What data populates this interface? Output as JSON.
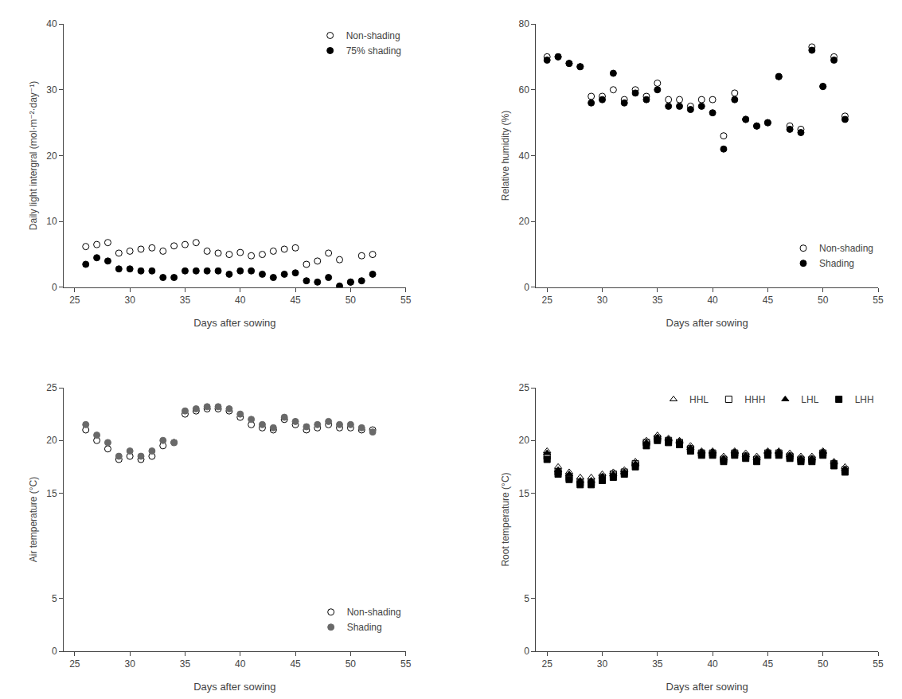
{
  "chart_data": [
    {
      "type": "scatter",
      "xlabel": "Days after sowing",
      "ylabel": "Daily light intergral (mol·m⁻²·day⁻¹)",
      "xlim": [
        24,
        55
      ],
      "xticks": [
        25,
        30,
        35,
        40,
        45,
        50,
        55
      ],
      "ylim": [
        0,
        40
      ],
      "yticks": [
        0,
        10,
        20,
        30,
        40
      ],
      "grid": false,
      "legend": "upper right",
      "series": [
        {
          "name": "Non-shading",
          "color": "black",
          "marker": "circle-open",
          "x": [
            26,
            27,
            28,
            29,
            30,
            31,
            32,
            33,
            34,
            35,
            36,
            37,
            38,
            39,
            40,
            41,
            42,
            43,
            44,
            45,
            46,
            47,
            48,
            49,
            50,
            51,
            52
          ],
          "values": [
            6.2,
            6.5,
            6.8,
            5.2,
            5.5,
            5.8,
            6.0,
            5.5,
            6.3,
            6.5,
            6.8,
            5.5,
            5.2,
            5.0,
            5.3,
            4.8,
            5.0,
            5.5,
            5.8,
            6.0,
            3.5,
            4.0,
            5.2,
            4.2,
            0.8,
            4.8,
            5.0
          ]
        },
        {
          "name": "75% shading",
          "color": "black",
          "marker": "circle",
          "x": [
            26,
            27,
            28,
            29,
            30,
            31,
            32,
            33,
            34,
            35,
            36,
            37,
            38,
            39,
            40,
            41,
            42,
            43,
            44,
            45,
            46,
            47,
            48,
            49,
            50,
            51,
            52
          ],
          "values": [
            3.5,
            4.5,
            4.0,
            2.8,
            2.8,
            2.5,
            2.5,
            1.5,
            1.5,
            2.5,
            2.5,
            2.5,
            2.5,
            2.0,
            2.5,
            2.5,
            2.0,
            1.5,
            2.0,
            2.2,
            1.0,
            0.8,
            1.5,
            0.2,
            0.8,
            1.0,
            2.0
          ]
        }
      ]
    },
    {
      "type": "scatter",
      "xlabel": "Days after sowing",
      "ylabel": "Relative humidity (%)",
      "xlim": [
        24,
        55
      ],
      "xticks": [
        25,
        30,
        35,
        40,
        45,
        50,
        55
      ],
      "ylim": [
        0,
        80
      ],
      "yticks": [
        0,
        20,
        40,
        60,
        80
      ],
      "grid": false,
      "legend": "lower right",
      "series": [
        {
          "name": "Non-shading",
          "color": "black",
          "marker": "circle-open",
          "x": [
            25,
            26,
            27,
            28,
            29,
            30,
            31,
            32,
            33,
            34,
            35,
            36,
            37,
            38,
            39,
            40,
            41,
            42,
            43,
            44,
            45,
            46,
            47,
            48,
            49,
            50,
            51,
            52
          ],
          "values": [
            70,
            70,
            68,
            67,
            58,
            58,
            60,
            57,
            60,
            58,
            62,
            57,
            57,
            55,
            57,
            57,
            46,
            59,
            51,
            49,
            50,
            64,
            49,
            48,
            73,
            61,
            70,
            52
          ]
        },
        {
          "name": "Shading",
          "color": "black",
          "marker": "circle",
          "x": [
            25,
            26,
            27,
            28,
            29,
            30,
            31,
            32,
            33,
            34,
            35,
            36,
            37,
            38,
            39,
            40,
            41,
            42,
            43,
            44,
            45,
            46,
            47,
            48,
            49,
            50,
            51,
            52
          ],
          "values": [
            69,
            70,
            68,
            67,
            56,
            57,
            65,
            56,
            59,
            57,
            60,
            55,
            55,
            54,
            55,
            53,
            42,
            57,
            51,
            49,
            50,
            64,
            48,
            47,
            72,
            61,
            69,
            51
          ]
        }
      ]
    },
    {
      "type": "scatter",
      "xlabel": "Days after sowing",
      "ylabel": "Air temperature (°C)",
      "xlim": [
        24,
        55
      ],
      "xticks": [
        25,
        30,
        35,
        40,
        45,
        50,
        55
      ],
      "ylim": [
        0,
        25
      ],
      "yticks": [
        0,
        5,
        15,
        20,
        25
      ],
      "grid": false,
      "legend": "lower right",
      "series": [
        {
          "name": "Non-shading",
          "color": "black",
          "marker": "circle-open",
          "x": [
            26,
            27,
            28,
            29,
            30,
            31,
            32,
            33,
            34,
            35,
            36,
            37,
            38,
            39,
            40,
            41,
            42,
            43,
            44,
            45,
            46,
            47,
            48,
            49,
            50,
            51,
            52
          ],
          "values": [
            21.0,
            20.0,
            19.2,
            18.2,
            18.5,
            18.2,
            18.5,
            19.5,
            19.8,
            22.5,
            22.8,
            23.0,
            23.0,
            22.8,
            22.2,
            21.5,
            21.2,
            21.0,
            22.0,
            21.5,
            21.0,
            21.2,
            21.5,
            21.2,
            21.2,
            21.0,
            21.0
          ]
        },
        {
          "name": "Shading",
          "color": "dimgray",
          "marker": "circle",
          "x": [
            26,
            27,
            28,
            29,
            30,
            31,
            32,
            33,
            34,
            35,
            36,
            37,
            38,
            39,
            40,
            41,
            42,
            43,
            44,
            45,
            46,
            47,
            48,
            49,
            50,
            51,
            52
          ],
          "values": [
            21.5,
            20.5,
            19.8,
            18.5,
            19.0,
            18.5,
            19.0,
            20.0,
            19.8,
            22.8,
            23.0,
            23.2,
            23.2,
            23.0,
            22.5,
            22.0,
            21.5,
            21.2,
            22.2,
            21.8,
            21.3,
            21.5,
            21.8,
            21.5,
            21.5,
            21.2,
            20.8
          ]
        }
      ]
    },
    {
      "type": "scatter",
      "xlabel": "Days after sowing",
      "ylabel": "Root temperature (°C)",
      "xlim": [
        24,
        55
      ],
      "xticks": [
        25,
        30,
        35,
        40,
        45,
        50,
        55
      ],
      "ylim": [
        0,
        25
      ],
      "yticks": [
        0,
        5,
        15,
        20,
        25
      ],
      "grid": false,
      "legend": "upper right",
      "series": [
        {
          "name": "HHL",
          "color": "black",
          "marker": "triangle-up-open",
          "x": [
            25,
            26,
            27,
            28,
            29,
            30,
            31,
            32,
            33,
            34,
            35,
            36,
            37,
            38,
            39,
            40,
            41,
            42,
            43,
            44,
            45,
            46,
            47,
            48,
            49,
            50,
            51,
            52
          ],
          "values": [
            19.0,
            17.5,
            17.0,
            16.5,
            16.5,
            16.8,
            17.0,
            17.2,
            18.0,
            20.0,
            20.5,
            20.2,
            20.0,
            19.5,
            19.0,
            19.0,
            18.5,
            19.0,
            18.8,
            18.5,
            19.0,
            19.0,
            18.8,
            18.5,
            18.5,
            19.0,
            18.0,
            17.5
          ]
        },
        {
          "name": "HHH",
          "color": "black",
          "marker": "square-open",
          "x": [
            25,
            26,
            27,
            28,
            29,
            30,
            31,
            32,
            33,
            34,
            35,
            36,
            37,
            38,
            39,
            40,
            41,
            42,
            43,
            44,
            45,
            46,
            47,
            48,
            49,
            50,
            51,
            52
          ],
          "values": [
            18.5,
            17.0,
            16.5,
            16.0,
            16.0,
            16.5,
            16.8,
            17.0,
            17.8,
            19.8,
            20.2,
            20.0,
            19.8,
            19.2,
            18.8,
            18.8,
            18.2,
            18.8,
            18.5,
            18.2,
            18.8,
            18.8,
            18.5,
            18.2,
            18.2,
            18.8,
            17.8,
            17.2
          ]
        },
        {
          "name": "LHL",
          "color": "black",
          "marker": "triangle-up",
          "x": [
            25,
            26,
            27,
            28,
            29,
            30,
            31,
            32,
            33,
            34,
            35,
            36,
            37,
            38,
            39,
            40,
            41,
            42,
            43,
            44,
            45,
            46,
            47,
            48,
            49,
            50,
            51,
            52
          ],
          "values": [
            18.8,
            17.2,
            16.8,
            16.2,
            16.2,
            16.6,
            16.8,
            17.0,
            17.8,
            19.8,
            20.3,
            20.1,
            19.9,
            19.3,
            18.9,
            18.9,
            18.3,
            18.9,
            18.6,
            18.3,
            18.9,
            18.9,
            18.6,
            18.3,
            18.3,
            18.9,
            17.9,
            17.3
          ]
        },
        {
          "name": "LHH",
          "color": "black",
          "marker": "square",
          "x": [
            25,
            26,
            27,
            28,
            29,
            30,
            31,
            32,
            33,
            34,
            35,
            36,
            37,
            38,
            39,
            40,
            41,
            42,
            43,
            44,
            45,
            46,
            47,
            48,
            49,
            50,
            51,
            52
          ],
          "values": [
            18.2,
            16.8,
            16.3,
            15.8,
            15.8,
            16.2,
            16.5,
            16.8,
            17.5,
            19.5,
            20.0,
            19.8,
            19.6,
            19.0,
            18.6,
            18.6,
            18.0,
            18.6,
            18.3,
            18.0,
            18.6,
            18.6,
            18.3,
            18.0,
            18.0,
            18.6,
            17.6,
            17.0
          ]
        }
      ]
    }
  ]
}
